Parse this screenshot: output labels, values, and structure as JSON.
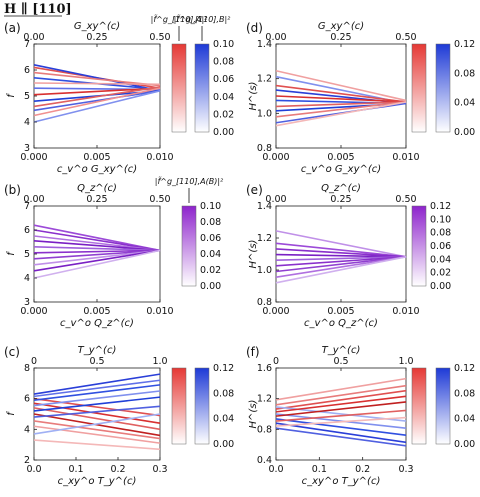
{
  "header": {
    "title": "H ∥ [110]"
  },
  "chart_data": [
    {
      "panel": "(a)",
      "type": "line",
      "top_axis_label": "G_xy^(c)",
      "top_ticks": [
        "0.00",
        "0.25",
        "0.50"
      ],
      "xlabel": "c_v^o G_xy^(c)",
      "ylabel": "f",
      "x_ticks": [
        "0.000",
        "0.005",
        "0.010"
      ],
      "y_ticks": [
        "3",
        "4",
        "5",
        "6",
        "7"
      ],
      "xlim": [
        0,
        0.01
      ],
      "ylim": [
        3,
        7
      ],
      "colorbars": [
        {
          "title": "|f̃^g_[110],A|²",
          "ticks": [],
          "color": "#e53935"
        },
        {
          "title": "|f̃^g_[110],B|²",
          "ticks": [
            "0.00",
            "0.02",
            "0.04",
            "0.06",
            "0.08",
            "0.10"
          ],
          "color": "#1e3ad6"
        }
      ],
      "series": [
        {
          "color": "#e05050",
          "x": [
            0,
            0.01
          ],
          "y": [
            6.1,
            5.3
          ]
        },
        {
          "color": "#2a3fd8",
          "x": [
            0,
            0.01
          ],
          "y": [
            6.2,
            5.2
          ]
        },
        {
          "color": "#e87c7c",
          "x": [
            0,
            0.01
          ],
          "y": [
            5.9,
            5.4
          ]
        },
        {
          "color": "#3050e0",
          "x": [
            0,
            0.01
          ],
          "y": [
            5.7,
            5.25
          ]
        },
        {
          "color": "#f0a0a0",
          "x": [
            0,
            0.01
          ],
          "y": [
            5.5,
            5.45
          ]
        },
        {
          "color": "#6070e8",
          "x": [
            0,
            0.01
          ],
          "y": [
            5.3,
            5.25
          ]
        },
        {
          "color": "#d83030",
          "x": [
            0,
            0.01
          ],
          "y": [
            5.05,
            5.3
          ]
        },
        {
          "color": "#2040d8",
          "x": [
            0,
            0.01
          ],
          "y": [
            4.8,
            5.2
          ]
        },
        {
          "color": "#e06060",
          "x": [
            0,
            0.01
          ],
          "y": [
            4.6,
            5.35
          ]
        },
        {
          "color": "#5060e0",
          "x": [
            0,
            0.01
          ],
          "y": [
            4.45,
            5.2
          ]
        },
        {
          "color": "#f09090",
          "x": [
            0,
            0.01
          ],
          "y": [
            4.25,
            5.3
          ]
        },
        {
          "color": "#8090ee",
          "x": [
            0,
            0.01
          ],
          "y": [
            4.0,
            5.2
          ]
        }
      ]
    },
    {
      "panel": "(b)",
      "type": "line",
      "top_axis_label": "Q_z^(c)",
      "top_ticks": [
        "0.00",
        "0.25",
        "0.50"
      ],
      "xlabel": "c_v^o Q_z^(c)",
      "ylabel": "f",
      "x_ticks": [
        "0.000",
        "0.005",
        "0.010"
      ],
      "y_ticks": [
        "3",
        "4",
        "5",
        "6",
        "7"
      ],
      "xlim": [
        0,
        0.01
      ],
      "ylim": [
        3,
        7
      ],
      "colorbars": [
        {
          "title": "|f̃^g_[110],A(B)|²",
          "ticks": [
            "0.00",
            "0.02",
            "0.04",
            "0.06",
            "0.08",
            "0.10"
          ],
          "color": "#8e24cc"
        }
      ],
      "series": [
        {
          "color": "#9c4ad8",
          "x": [
            0,
            0.01
          ],
          "y": [
            6.2,
            5.15
          ]
        },
        {
          "color": "#8a30cc",
          "x": [
            0,
            0.01
          ],
          "y": [
            6.0,
            5.15
          ]
        },
        {
          "color": "#b070e0",
          "x": [
            0,
            0.01
          ],
          "y": [
            5.75,
            5.15
          ]
        },
        {
          "color": "#7a20c4",
          "x": [
            0,
            0.01
          ],
          "y": [
            5.55,
            5.15
          ]
        },
        {
          "color": "#a060dc",
          "x": [
            0,
            0.01
          ],
          "y": [
            5.3,
            5.15
          ]
        },
        {
          "color": "#8a30cc",
          "x": [
            0,
            0.01
          ],
          "y": [
            5.05,
            5.15
          ]
        },
        {
          "color": "#9040d0",
          "x": [
            0,
            0.01
          ],
          "y": [
            4.8,
            5.15
          ]
        },
        {
          "color": "#c090e8",
          "x": [
            0,
            0.01
          ],
          "y": [
            4.55,
            5.15
          ]
        },
        {
          "color": "#7a20c4",
          "x": [
            0,
            0.01
          ],
          "y": [
            4.3,
            5.15
          ]
        },
        {
          "color": "#d0b0ee",
          "x": [
            0,
            0.01
          ],
          "y": [
            4.0,
            5.15
          ]
        }
      ]
    },
    {
      "panel": "(c)",
      "type": "line",
      "top_axis_label": "T_y^(c)",
      "top_ticks": [
        "0",
        "0.5",
        "1.0"
      ],
      "xlabel": "c_xy^o T_y^(c)",
      "ylabel": "f",
      "x_ticks": [
        "0.0",
        "0.1",
        "0.2",
        "0.3"
      ],
      "y_ticks": [
        "2",
        "4",
        "6",
        "8"
      ],
      "xlim": [
        0,
        0.3
      ],
      "ylim": [
        2,
        8
      ],
      "colorbars": [
        {
          "title": "",
          "ticks": [],
          "color": "#e53935"
        },
        {
          "title": "",
          "ticks": [
            "0.00",
            "0.04",
            "0.08",
            "0.12"
          ],
          "color": "#1e3ad6"
        }
      ],
      "series": [
        {
          "color": "#2a3fd8",
          "x": [
            0,
            0.3
          ],
          "y": [
            6.3,
            7.6
          ]
        },
        {
          "color": "#6070e8",
          "x": [
            0,
            0.3
          ],
          "y": [
            6.15,
            7.2
          ]
        },
        {
          "color": "#e05050",
          "x": [
            0,
            0.3
          ],
          "y": [
            6.0,
            4.9
          ]
        },
        {
          "color": "#3050e0",
          "x": [
            0,
            0.3
          ],
          "y": [
            5.9,
            6.9
          ]
        },
        {
          "color": "#d83030",
          "x": [
            0,
            0.3
          ],
          "y": [
            5.7,
            4.4
          ]
        },
        {
          "color": "#8090ee",
          "x": [
            0,
            0.3
          ],
          "y": [
            5.55,
            6.5
          ]
        },
        {
          "color": "#e06060",
          "x": [
            0,
            0.3
          ],
          "y": [
            5.4,
            4.0
          ]
        },
        {
          "color": "#2040d8",
          "x": [
            0,
            0.3
          ],
          "y": [
            5.2,
            6.1
          ]
        },
        {
          "color": "#c02020",
          "x": [
            0,
            0.3
          ],
          "y": [
            5.0,
            3.6
          ]
        },
        {
          "color": "#5060e0",
          "x": [
            0,
            0.3
          ],
          "y": [
            4.8,
            5.5
          ]
        },
        {
          "color": "#e87c7c",
          "x": [
            0,
            0.3
          ],
          "y": [
            4.55,
            3.4
          ]
        },
        {
          "color": "#f0a0a0",
          "x": [
            0,
            0.3
          ],
          "y": [
            4.2,
            3.1
          ]
        },
        {
          "color": "#a0b0f4",
          "x": [
            0,
            0.3
          ],
          "y": [
            3.7,
            5.0
          ]
        },
        {
          "color": "#f4b8b8",
          "x": [
            0,
            0.3
          ],
          "y": [
            3.3,
            2.7
          ]
        }
      ]
    },
    {
      "panel": "(d)",
      "type": "line",
      "top_axis_label": "G_xy^(c)",
      "top_ticks": [
        "0.00",
        "0.25",
        "0.50"
      ],
      "xlabel": "c_v^o G_xy^(c)",
      "ylabel": "H^(s)",
      "x_ticks": [
        "0.000",
        "0.005",
        "0.010"
      ],
      "y_ticks": [
        "0.8",
        "1.0",
        "1.2",
        "1.4"
      ],
      "xlim": [
        0,
        0.01
      ],
      "ylim": [
        0.8,
        1.5
      ],
      "colorbars": [
        {
          "title": "",
          "ticks": [],
          "color": "#e53935"
        },
        {
          "title": "",
          "ticks": [
            "0.00",
            "0.04",
            "0.08",
            "0.12"
          ],
          "color": "#1e3ad6"
        }
      ],
      "series": [
        {
          "color": "#f0a0a0",
          "x": [
            0,
            0.01
          ],
          "y": [
            1.32,
            1.12
          ]
        },
        {
          "color": "#8090ee",
          "x": [
            0,
            0.01
          ],
          "y": [
            1.28,
            1.1
          ]
        },
        {
          "color": "#e05050",
          "x": [
            0,
            0.01
          ],
          "y": [
            1.22,
            1.11
          ]
        },
        {
          "color": "#2a3fd8",
          "x": [
            0,
            0.01
          ],
          "y": [
            1.19,
            1.1
          ]
        },
        {
          "color": "#d83030",
          "x": [
            0,
            0.01
          ],
          "y": [
            1.15,
            1.11
          ]
        },
        {
          "color": "#3050e0",
          "x": [
            0,
            0.01
          ],
          "y": [
            1.12,
            1.1
          ]
        },
        {
          "color": "#e06060",
          "x": [
            0,
            0.01
          ],
          "y": [
            1.08,
            1.11
          ]
        },
        {
          "color": "#2040d8",
          "x": [
            0,
            0.01
          ],
          "y": [
            1.05,
            1.1
          ]
        },
        {
          "color": "#e87c7c",
          "x": [
            0,
            0.01
          ],
          "y": [
            1.01,
            1.11
          ]
        },
        {
          "color": "#5060e0",
          "x": [
            0,
            0.01
          ],
          "y": [
            0.97,
            1.1
          ]
        },
        {
          "color": "#f4b8b8",
          "x": [
            0,
            0.01
          ],
          "y": [
            0.95,
            1.11
          ]
        }
      ]
    },
    {
      "panel": "(e)",
      "type": "line",
      "top_axis_label": "Q_z^(c)",
      "top_ticks": [
        "0.00",
        "0.25",
        "0.50"
      ],
      "xlabel": "c_v^o Q_z^(c)",
      "ylabel": "H^(s)",
      "x_ticks": [
        "0.000",
        "0.005",
        "0.010"
      ],
      "y_ticks": [
        "0.8",
        "1.0",
        "1.2",
        "1.4"
      ],
      "xlim": [
        0,
        0.01
      ],
      "ylim": [
        0.7,
        1.55
      ],
      "colorbars": [
        {
          "title": "",
          "ticks": [
            "0.00",
            "0.02",
            "0.04",
            "0.06",
            "0.08",
            "0.10",
            "0.12"
          ],
          "color": "#8e24cc"
        }
      ],
      "series": [
        {
          "color": "#c090e8",
          "x": [
            0,
            0.01
          ],
          "y": [
            1.33,
            1.1
          ]
        },
        {
          "color": "#9c4ad8",
          "x": [
            0,
            0.01
          ],
          "y": [
            1.22,
            1.1
          ]
        },
        {
          "color": "#8a30cc",
          "x": [
            0,
            0.01
          ],
          "y": [
            1.17,
            1.1
          ]
        },
        {
          "color": "#7a20c4",
          "x": [
            0,
            0.01
          ],
          "y": [
            1.12,
            1.1
          ]
        },
        {
          "color": "#a060dc",
          "x": [
            0,
            0.01
          ],
          "y": [
            1.07,
            1.1
          ]
        },
        {
          "color": "#8a30cc",
          "x": [
            0,
            0.01
          ],
          "y": [
            1.02,
            1.1
          ]
        },
        {
          "color": "#9040d0",
          "x": [
            0,
            0.01
          ],
          "y": [
            0.97,
            1.1
          ]
        },
        {
          "color": "#b070e0",
          "x": [
            0,
            0.01
          ],
          "y": [
            0.92,
            1.1
          ]
        },
        {
          "color": "#d0b0ee",
          "x": [
            0,
            0.01
          ],
          "y": [
            0.87,
            1.1
          ]
        }
      ]
    },
    {
      "panel": "(f)",
      "type": "line",
      "top_axis_label": "T_y^(c)",
      "top_ticks": [
        "0",
        "0.5",
        "1.0"
      ],
      "xlabel": "c_xy^o T_y^(c)",
      "ylabel": "H^(s)",
      "x_ticks": [
        "0.0",
        "0.1",
        "0.2",
        "0.3"
      ],
      "y_ticks": [
        "0.4",
        "0.8",
        "1.2",
        "1.6"
      ],
      "xlim": [
        0,
        0.3
      ],
      "ylim": [
        0.4,
        1.7
      ],
      "colorbars": [
        {
          "title": "",
          "ticks": [],
          "color": "#e53935"
        },
        {
          "title": "",
          "ticks": [
            "0.00",
            "0.04",
            "0.08",
            "0.12"
          ],
          "color": "#1e3ad6"
        }
      ],
      "series": [
        {
          "color": "#f0a0a0",
          "x": [
            0,
            0.3
          ],
          "y": [
            1.25,
            1.55
          ]
        },
        {
          "color": "#e87c7c",
          "x": [
            0,
            0.3
          ],
          "y": [
            1.18,
            1.45
          ]
        },
        {
          "color": "#e05050",
          "x": [
            0,
            0.3
          ],
          "y": [
            1.12,
            1.38
          ]
        },
        {
          "color": "#a0b0f4",
          "x": [
            0,
            0.3
          ],
          "y": [
            1.15,
            0.95
          ]
        },
        {
          "color": "#d83030",
          "x": [
            0,
            0.3
          ],
          "y": [
            1.08,
            1.3
          ]
        },
        {
          "color": "#8090ee",
          "x": [
            0,
            0.3
          ],
          "y": [
            1.05,
            0.85
          ]
        },
        {
          "color": "#c02020",
          "x": [
            0,
            0.3
          ],
          "y": [
            1.02,
            1.22
          ]
        },
        {
          "color": "#3050e0",
          "x": [
            0,
            0.3
          ],
          "y": [
            0.98,
            0.75
          ]
        },
        {
          "color": "#e06060",
          "x": [
            0,
            0.3
          ],
          "y": [
            0.95,
            1.1
          ]
        },
        {
          "color": "#2a3fd8",
          "x": [
            0,
            0.3
          ],
          "y": [
            0.92,
            0.65
          ]
        },
        {
          "color": "#f4b8b8",
          "x": [
            0,
            0.3
          ],
          "y": [
            0.88,
            1.0
          ]
        },
        {
          "color": "#5060e0",
          "x": [
            0,
            0.3
          ],
          "y": [
            0.85,
            0.6
          ]
        }
      ]
    }
  ]
}
